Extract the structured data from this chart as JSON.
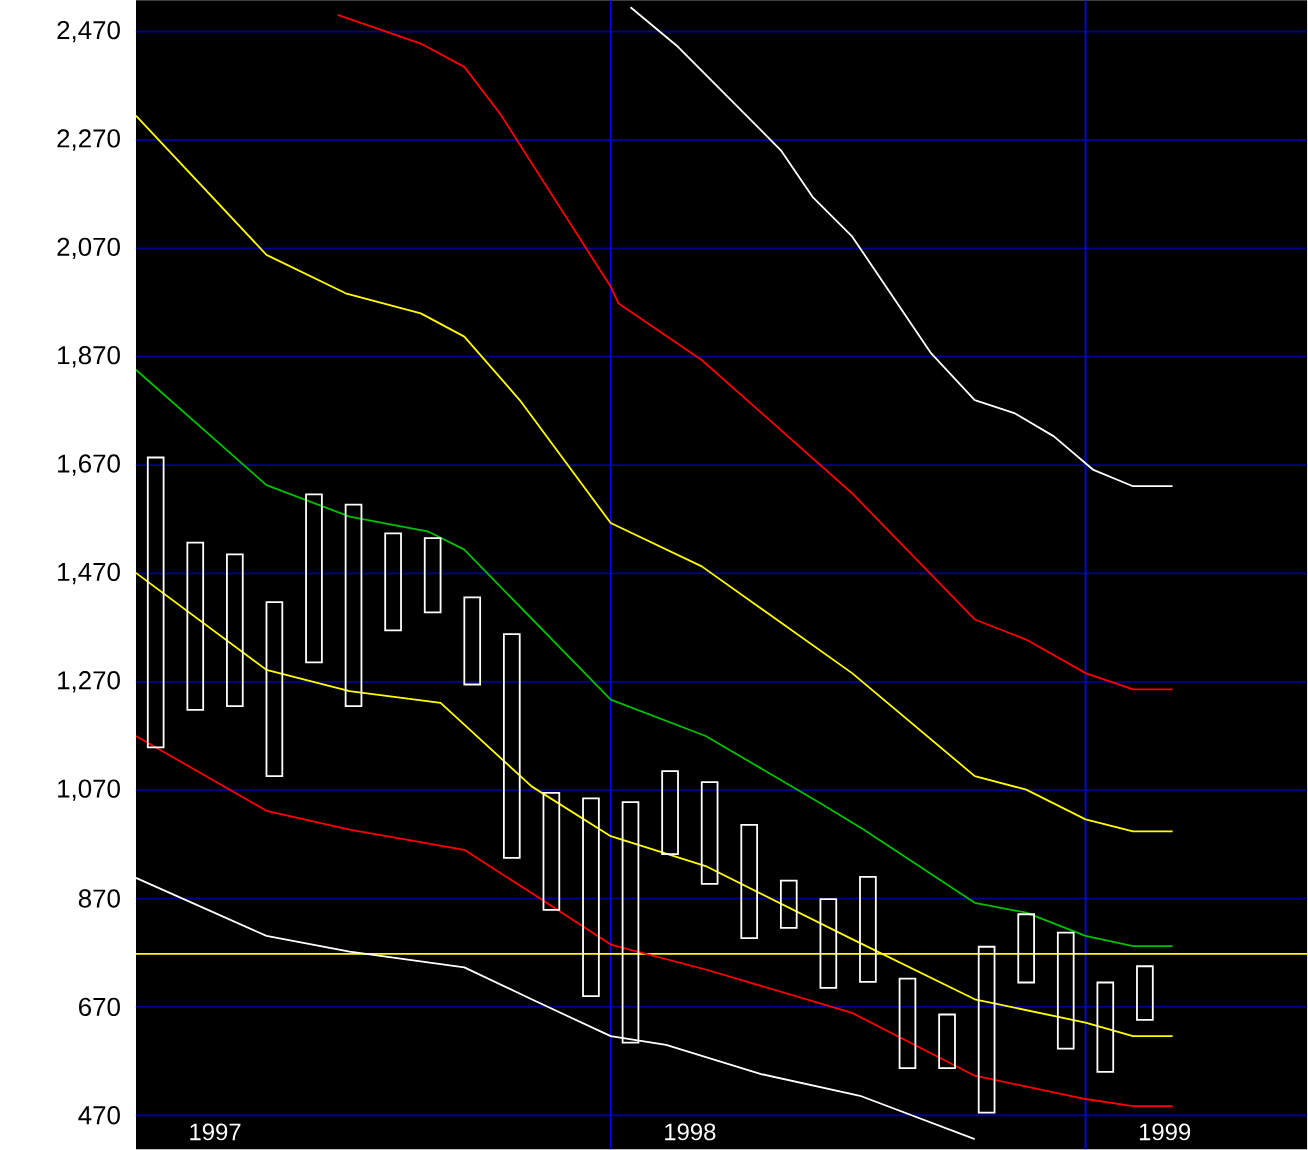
{
  "chart_data": {
    "type": "line",
    "xlim": [
      "1997-01-01",
      "1999-06-19"
    ],
    "ylim": [
      407,
      2528
    ],
    "xticks": [
      {
        "value": "1997-03-01",
        "label": "1997"
      },
      {
        "value": "1998-03-01",
        "label": "1998"
      },
      {
        "value": "1999-03-01",
        "label": "1999"
      }
    ],
    "yticks": [
      470,
      670,
      870,
      {
        "value": 1070,
        "label": "1,070"
      },
      {
        "value": 1270,
        "label": "1,270"
      },
      {
        "value": 1470,
        "label": "1,470"
      },
      {
        "value": 1670,
        "label": "1,670"
      },
      {
        "value": 1870,
        "label": "1,870"
      },
      {
        "value": 2070,
        "label": "2,070"
      },
      {
        "value": 2270,
        "label": "2,270"
      },
      {
        "value": 2470,
        "label": "2,470"
      }
    ],
    "grid": "y",
    "ref_lines": [
      {
        "axis": "x",
        "value": "1998-01-01",
        "color": "#0000ff"
      },
      {
        "axis": "x",
        "value": "1999-01-01",
        "color": "#0000ff"
      },
      {
        "axis": "y",
        "value": 768,
        "color": "#ffff00"
      }
    ],
    "series": [
      {
        "color": "#ffffff",
        "x": [
          "1997-01-01",
          "1997-04-09",
          "1997-06-14",
          "1997-09-09",
          "1997-11-01",
          "1998-01-01",
          "1998-02-13",
          "1998-04-24",
          "1998-07-10",
          "1998-10-06"
        ],
        "values": [
          908,
          801,
          772,
          743,
          684,
          616,
          600,
          546,
          506,
          426
        ]
      },
      {
        "color": "#ff0000",
        "x": [
          "1997-01-01",
          "1997-04-09",
          "1997-06-14",
          "1997-09-09",
          "1997-11-01",
          "1998-01-01",
          "1998-03-13",
          "1998-07-05",
          "1998-10-06",
          "1999-01-01",
          "1999-02-07",
          "1999-03-06"
        ],
        "values": [
          1170,
          1032,
          997,
          960,
          880,
          785,
          739,
          659,
          543,
          500,
          487,
          487
        ]
      },
      {
        "color": "#ffff00",
        "x": [
          "1997-01-01",
          "1997-04-09",
          "1997-06-14",
          "1997-08-23",
          "1997-11-01",
          "1998-01-01",
          "1998-03-13",
          "1998-07-05",
          "1998-10-06",
          "1999-01-01",
          "1999-02-07",
          "1999-03-06"
        ],
        "values": [
          1471,
          1292,
          1253,
          1231,
          1077,
          985,
          930,
          795,
          684,
          641,
          616,
          616
        ]
      },
      {
        "color": "#00c000",
        "x": [
          "1997-01-01",
          "1997-04-09",
          "1997-06-14",
          "1997-08-14",
          "1997-09-10",
          "1998-01-01",
          "1998-03-13",
          "1998-06-09",
          "1998-07-14",
          "1998-10-06",
          "1998-11-16",
          "1999-01-01",
          "1999-02-07",
          "1999-03-06"
        ],
        "values": [
          1846,
          1633,
          1575,
          1547,
          1514,
          1237,
          1170,
          1046,
          997,
          862,
          844,
          801,
          782,
          782
        ]
      },
      {
        "color": "#ffff00",
        "x": [
          "1997-01-01",
          "1997-04-09",
          "1997-06-10",
          "1997-08-06",
          "1997-09-10",
          "1997-10-22",
          "1998-01-01",
          "1998-03-09",
          "1998-07-05",
          "1998-10-06",
          "1998-11-16",
          "1999-01-01",
          "1999-02-07",
          "1999-03-06"
        ],
        "values": [
          2315,
          2058,
          1987,
          1950,
          1907,
          1790,
          1563,
          1483,
          1286,
          1096,
          1071,
          1016,
          994,
          994
        ]
      },
      {
        "color": "#ff0000",
        "x": [
          "1997-06-05",
          "1997-08-06",
          "1997-09-10",
          "1997-10-07",
          "1998-01-01",
          "1998-01-08",
          "1998-03-09",
          "1998-07-05",
          "1998-10-06",
          "1998-11-16",
          "1999-01-01",
          "1999-02-07",
          "1999-03-06"
        ],
        "values": [
          2501,
          2448,
          2405,
          2319,
          1999,
          1968,
          1864,
          1618,
          1385,
          1348,
          1286,
          1256,
          1256
        ]
      },
      {
        "color": "#ffffff",
        "x": [
          "1998-01-17",
          "1998-02-21",
          "1998-05-09",
          "1998-06-04",
          "1998-07-05",
          "1998-09-05",
          "1998-10-06",
          "1998-11-06",
          "1998-12-06",
          "1999-01-07",
          "1999-02-07",
          "1999-03-06"
        ],
        "values": [
          2515,
          2442,
          2251,
          2165,
          2092,
          1876,
          1790,
          1766,
          1723,
          1661,
          1631,
          1631
        ]
      },
      {
        "type": "bar",
        "color": "#ffffff",
        "x": [
          "1997-01-16",
          "1997-02-15",
          "1997-03-16",
          "1997-04-16",
          "1997-05-16",
          "1997-06-16",
          "1997-07-16",
          "1997-08-16",
          "1997-09-16",
          "1997-10-16",
          "1997-11-16",
          "1997-12-16",
          "1998-01-16",
          "1998-02-15",
          "1998-03-16",
          "1998-04-16",
          "1998-05-16",
          "1998-06-16",
          "1998-07-16",
          "1998-08-16",
          "1998-09-16",
          "1998-10-16",
          "1998-11-16",
          "1998-12-16",
          "1999-01-16",
          "1999-02-15"
        ],
        "base": [
          1149,
          1218,
          1225,
          1096,
          1306,
          1225,
          1365,
          1398,
          1265,
          945,
          849,
          690,
          604,
          952,
          897,
          797,
          816,
          705,
          716,
          557,
          557,
          475,
          715,
          593,
          550,
          646
        ],
        "values": [
          535,
          309,
          280,
          321,
          310,
          372,
          179,
          137,
          161,
          413,
          216,
          365,
          444,
          153,
          188,
          209,
          87,
          164,
          194,
          165,
          99,
          306,
          126,
          214,
          165,
          99
        ]
      }
    ]
  }
}
